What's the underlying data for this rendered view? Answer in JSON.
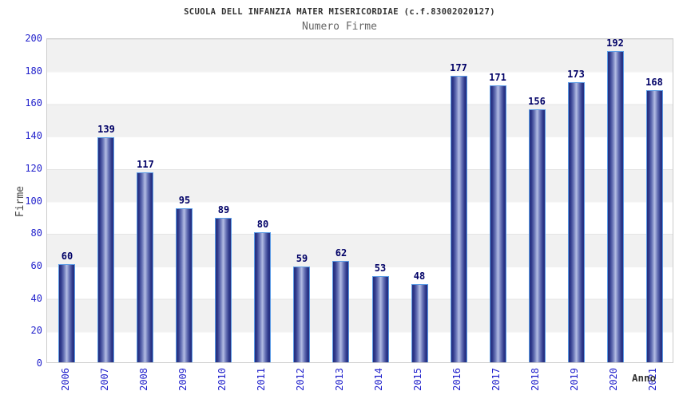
{
  "chart_data": {
    "type": "bar",
    "title": "SCUOLA DELL INFANZIA MATER MISERICORDIAE (c.f.83002020127)",
    "subtitle": "Numero Firme",
    "xlabel": "Anno",
    "ylabel": "Firme",
    "categories": [
      "2006",
      "2007",
      "2008",
      "2009",
      "2010",
      "2011",
      "2012",
      "2013",
      "2014",
      "2015",
      "2016",
      "2017",
      "2018",
      "2019",
      "2020",
      "2021"
    ],
    "values": [
      60,
      139,
      117,
      95,
      89,
      80,
      59,
      62,
      53,
      48,
      177,
      171,
      156,
      173,
      192,
      168
    ],
    "ylim": [
      0,
      200
    ],
    "yticks": [
      0,
      20,
      40,
      60,
      80,
      100,
      120,
      140,
      160,
      180,
      200
    ],
    "grid": "alternating-horizontal-bands",
    "legend": "none",
    "bar_value_labels": true,
    "x_tick_rotation_deg": -90,
    "colors": {
      "bar_edge": "#5c9ce6",
      "bar_dark": "#242e7e",
      "bar_light": "#b4bde4",
      "axis_tick_label": "#2222cc",
      "value_label": "#000066",
      "band_gray": "#f1f1f1",
      "band_white": "#ffffff",
      "title": "#333333",
      "subtitle": "#666666"
    }
  }
}
